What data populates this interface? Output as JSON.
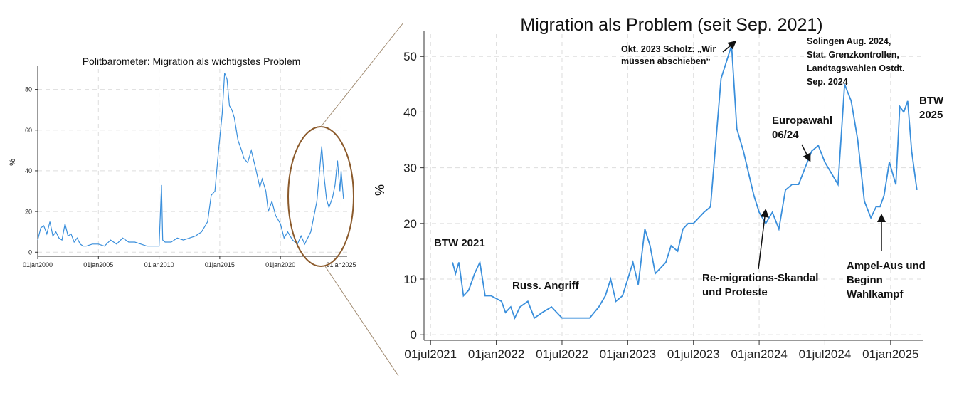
{
  "chart_data": [
    {
      "type": "line",
      "title": "Politbarometer: Migration als wichtigstes Problem",
      "ylabel": "%",
      "xlabel": "",
      "x_tick_labels": [
        "01jan2000",
        "01jan2005",
        "01jan2010",
        "01jan2015",
        "01jan2020",
        "01jan2025"
      ],
      "x_ticks": [
        2000,
        2005,
        2010,
        2015,
        2020,
        2025
      ],
      "y_ticks": [
        0,
        20,
        40,
        60,
        80
      ],
      "xlim": [
        2000,
        2025.5
      ],
      "ylim": [
        -2,
        90
      ],
      "grid": true,
      "line_color": "#3a8fdc",
      "highlight_color": "#8b5a2b",
      "series": [
        {
          "x": [
            2000.0,
            2000.25,
            2000.5,
            2000.75,
            2001.0,
            2001.25,
            2001.5,
            2001.75,
            2002.0,
            2002.25,
            2002.5,
            2002.75,
            2003.0,
            2003.25,
            2003.5,
            2003.75,
            2004.0,
            2004.5,
            2005.0,
            2005.5,
            2006.0,
            2006.5,
            2007.0,
            2007.5,
            2008.0,
            2008.5,
            2009.0,
            2009.5,
            2010.0,
            2010.2,
            2010.3,
            2010.5,
            2011.0,
            2011.5,
            2012.0,
            2012.5,
            2013.0,
            2013.5,
            2014.0,
            2014.3,
            2014.6,
            2014.9,
            2015.2,
            2015.4,
            2015.6,
            2015.8,
            2016.0,
            2016.2,
            2016.5,
            2016.8,
            2017.0,
            2017.3,
            2017.6,
            2018.0,
            2018.3,
            2018.5,
            2018.8,
            2019.0,
            2019.3,
            2019.6,
            2020.0,
            2020.3,
            2020.6,
            2021.0,
            2021.4,
            2021.7,
            2022.0,
            2022.5,
            2023.0,
            2023.4,
            2023.6,
            2023.8,
            2024.0,
            2024.3,
            2024.5,
            2024.7,
            2024.9,
            2025.0,
            2025.2
          ],
          "y": [
            6,
            12,
            13,
            9,
            15,
            8,
            10,
            7,
            6,
            14,
            8,
            9,
            5,
            7,
            4,
            3,
            3,
            4,
            4,
            3,
            6,
            4,
            7,
            5,
            5,
            4,
            3,
            3,
            3,
            33,
            6,
            5,
            5,
            7,
            6,
            7,
            8,
            10,
            15,
            28,
            30,
            50,
            68,
            88,
            85,
            72,
            70,
            66,
            55,
            50,
            46,
            44,
            50,
            40,
            32,
            36,
            30,
            20,
            25,
            18,
            14,
            7,
            10,
            6,
            4,
            8,
            4,
            10,
            25,
            52,
            37,
            26,
            22,
            27,
            33,
            45,
            30,
            40,
            26
          ]
        }
      ]
    },
    {
      "type": "line",
      "title": "Migration als Problem (seit Sep. 2021)",
      "ylabel": "%",
      "xlabel": "",
      "x_tick_labels": [
        "01jul2021",
        "01jan2022",
        "01jul2022",
        "01jan2023",
        "01jul2023",
        "01jan2024",
        "01jul2024",
        "01jan2025"
      ],
      "x_ticks": [
        2021.5,
        2022.0,
        2022.5,
        2023.0,
        2023.5,
        2024.0,
        2024.5,
        2025.0
      ],
      "y_ticks": [
        0,
        10,
        20,
        30,
        40,
        50
      ],
      "xlim": [
        2021.45,
        2025.25
      ],
      "ylim": [
        -1,
        54
      ],
      "grid": true,
      "line_color": "#3a8fdc",
      "series": [
        {
          "x": [
            2021.667,
            2021.69,
            2021.715,
            2021.75,
            2021.79,
            2021.835,
            2021.875,
            2021.915,
            2021.96,
            2022.0,
            2022.04,
            2022.07,
            2022.11,
            2022.14,
            2022.18,
            2022.24,
            2022.29,
            2022.35,
            2022.42,
            2022.5,
            2022.58,
            2022.65,
            2022.71,
            2022.78,
            2022.83,
            2022.87,
            2022.91,
            2022.96,
            2023.04,
            2023.08,
            2023.13,
            2023.17,
            2023.21,
            2023.25,
            2023.29,
            2023.33,
            2023.38,
            2023.42,
            2023.46,
            2023.5,
            2023.54,
            2023.58,
            2023.63,
            2023.71,
            2023.79,
            2023.83,
            2023.88,
            2023.92,
            2023.96,
            2024.0,
            2024.05,
            2024.1,
            2024.15,
            2024.2,
            2024.25,
            2024.3,
            2024.35,
            2024.4,
            2024.45,
            2024.5,
            2024.55,
            2024.6,
            2024.65,
            2024.7,
            2024.75,
            2024.8,
            2024.85,
            2024.89,
            2024.92,
            2024.95,
            2024.99,
            2025.04,
            2025.07,
            2025.1,
            2025.13,
            2025.16,
            2025.2
          ],
          "y": [
            13,
            11,
            13,
            7,
            8,
            11,
            13,
            7,
            7,
            6.5,
            6,
            4,
            5,
            3,
            5,
            6,
            3,
            4,
            5,
            3,
            3,
            3,
            3,
            5,
            7,
            10,
            6,
            7,
            13,
            9,
            19,
            16,
            11,
            12,
            13,
            16,
            15,
            19,
            20,
            20,
            21,
            22,
            23,
            46,
            52,
            37,
            33,
            29,
            25,
            22,
            20,
            22,
            19,
            26,
            27,
            27,
            30,
            33,
            34,
            31,
            29,
            27,
            45,
            42,
            35,
            24,
            21,
            23,
            23,
            25,
            31,
            27,
            41,
            40,
            42,
            33,
            26
          ]
        }
      ],
      "annotations": [
        {
          "lines": [
            "BTW 2021"
          ],
          "arrow": false
        },
        {
          "lines": [
            "Russ. Angriff"
          ],
          "arrow": false
        },
        {
          "lines": [
            "Okt. 2023 Scholz: „Wir",
            "müssen abschieben“"
          ],
          "arrow": true
        },
        {
          "lines": [
            "Re-migrations-Skandal",
            "und Proteste"
          ],
          "arrow": true
        },
        {
          "lines": [
            "Europawahl",
            "06/24"
          ],
          "arrow": true
        },
        {
          "lines": [
            "Solingen Aug. 2024,",
            "Stat. Grenzkontrollen,",
            "Landtagswahlen Ostdt.",
            "Sep. 2024"
          ],
          "arrow": false
        },
        {
          "lines": [
            "BTW",
            "2025"
          ],
          "arrow": false
        },
        {
          "lines": [
            "Ampel-Aus und",
            "Beginn",
            "Wahlkampf"
          ],
          "arrow": true
        }
      ]
    }
  ]
}
